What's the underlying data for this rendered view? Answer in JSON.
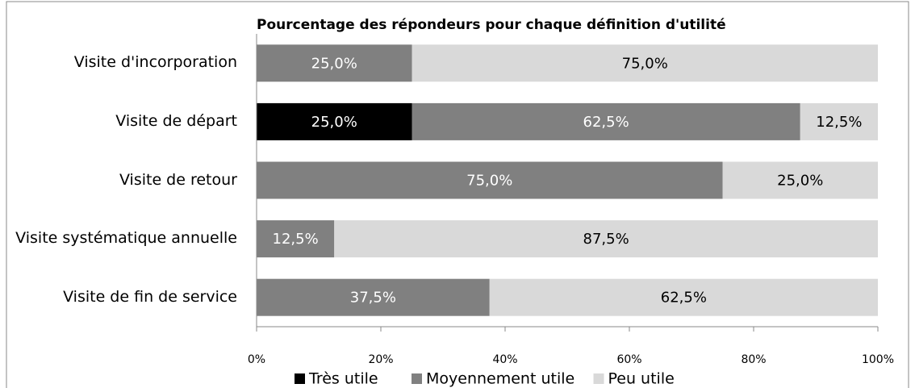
{
  "chart_data": {
    "type": "stacked-barh",
    "title": "Pourcentage des répondeurs pour chaque définition d'utilité",
    "categories": [
      "Visite d'incorporation",
      "Visite de départ",
      "Visite de retour",
      "Visite systématique annuelle",
      "Visite de fin de service"
    ],
    "series": [
      {
        "name": "Très utile",
        "color": "#000000",
        "values": [
          0,
          25,
          0,
          0,
          0
        ],
        "value_labels": [
          null,
          "25,0%",
          null,
          null,
          null
        ]
      },
      {
        "name": "Moyennement utile",
        "color": "#808080",
        "values": [
          25,
          62.5,
          75,
          12.5,
          37.5
        ],
        "value_labels": [
          "25,0%",
          "62,5%",
          "75,0%",
          "12,5%",
          "37,5%"
        ]
      },
      {
        "name": "Peu utile",
        "color": "#d9d9d9",
        "values": [
          75,
          12.5,
          25,
          87.5,
          62.5
        ],
        "value_labels": [
          "75,0%",
          "12,5%",
          "25,0%",
          "87,5%",
          "62,5%"
        ]
      }
    ],
    "xlim": [
      0,
      100
    ],
    "xticks": [
      {
        "value": 0,
        "label": "0%"
      },
      {
        "value": 20,
        "label": "20%"
      },
      {
        "value": 40,
        "label": "40%"
      },
      {
        "value": 60,
        "label": "60%"
      },
      {
        "value": 80,
        "label": "80%"
      },
      {
        "value": 100,
        "label": "100%"
      }
    ],
    "legend": "bottom"
  }
}
